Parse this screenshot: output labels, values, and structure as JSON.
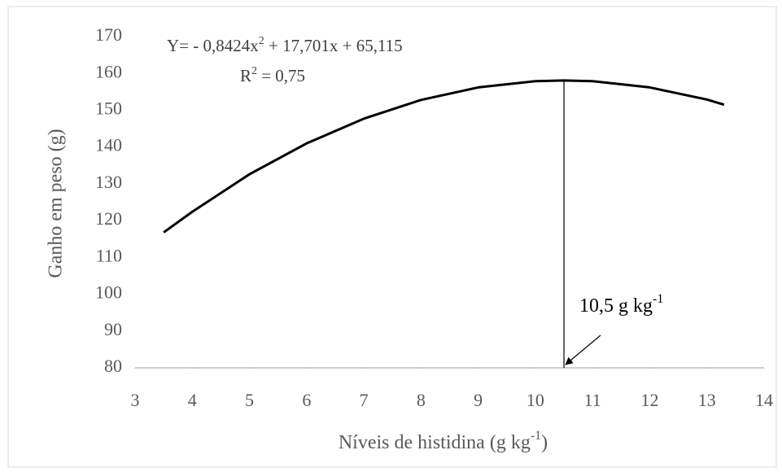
{
  "chart_data": {
    "type": "line",
    "y_label": "Ganho em peso (g)",
    "x_label": [
      {
        "text": "Níveis de histidina (g kg",
        "sup": false
      },
      {
        "text": "-1",
        "sup": true
      },
      {
        "text": ")",
        "sup": false
      }
    ],
    "equation": [
      {
        "text": "Y= - 0,8424x",
        "sup": false
      },
      {
        "text": "2",
        "sup": true
      },
      {
        "text": " + 17,701x + 65,115",
        "sup": false
      }
    ],
    "r_squared": [
      {
        "text": "R",
        "sup": false
      },
      {
        "text": "2",
        "sup": true
      },
      {
        "text": " = 0,75",
        "sup": false
      }
    ],
    "marker_label": [
      {
        "text": "10,5 g kg",
        "sup": false
      },
      {
        "text": "-1",
        "sup": true
      }
    ],
    "marker": {
      "x": 10.5,
      "y": 158.1
    },
    "x": [
      3.5,
      4,
      5,
      6,
      7,
      8,
      9,
      10,
      10.5,
      11,
      12,
      13,
      13.3
    ],
    "series": [
      {
        "name": "Y",
        "color": "#000000",
        "values": [
          116.8,
          122.4,
          132.6,
          141.0,
          147.7,
          152.8,
          156.2,
          157.9,
          158.1,
          157.9,
          156.2,
          152.9,
          151.5
        ]
      }
    ],
    "xlim": [
      3,
      14
    ],
    "xticks": [
      3,
      4,
      5,
      6,
      7,
      8,
      9,
      10,
      11,
      12,
      13,
      14
    ],
    "ylim": [
      80,
      170
    ],
    "yticks": [
      80,
      90,
      100,
      110,
      120,
      130,
      140,
      150,
      160,
      170
    ],
    "grid": false
  }
}
